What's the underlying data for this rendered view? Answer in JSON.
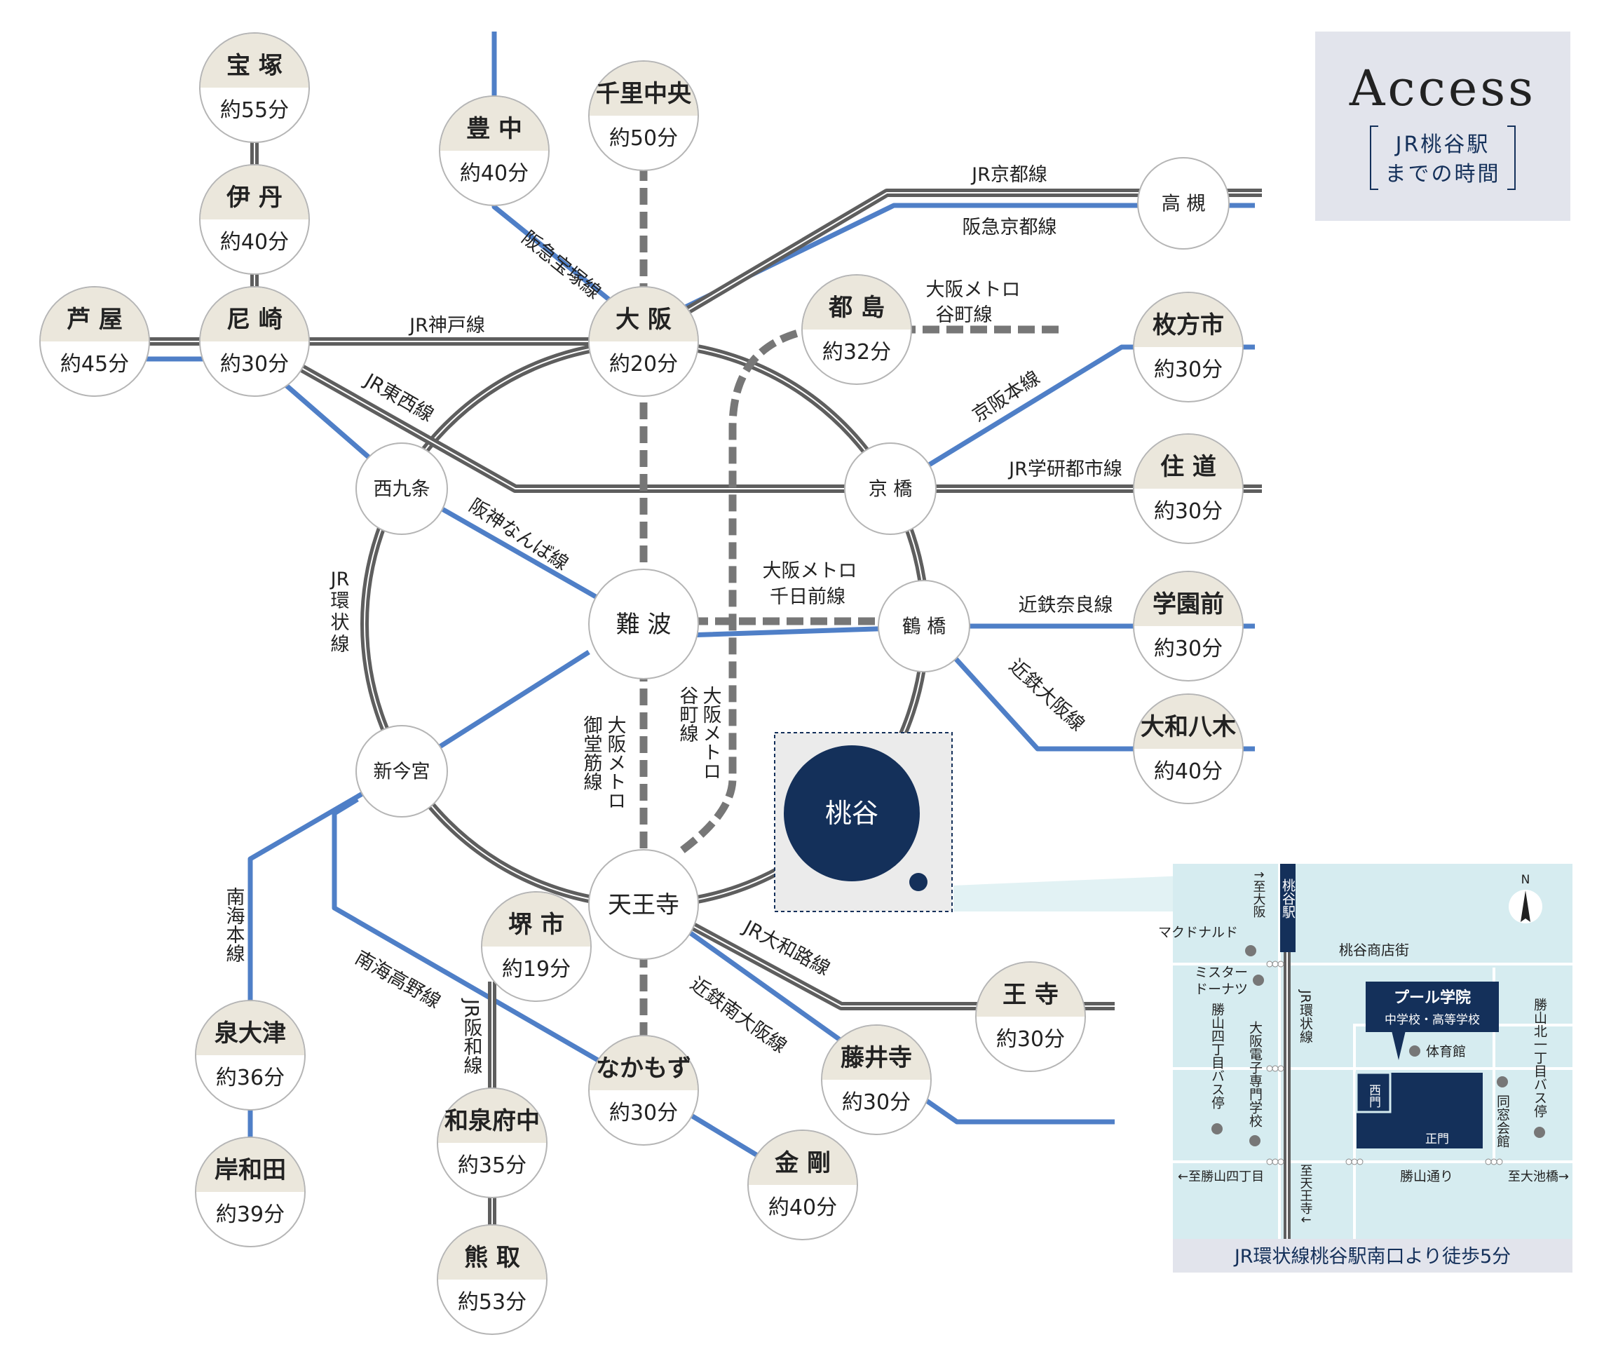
{
  "title": {
    "main": "Access",
    "sub1": "JR桃谷駅",
    "sub2": "までの時間"
  },
  "colors": {
    "blue": "#4f7fc7",
    "gray": "#5e5e5e",
    "beige": "#ebe7dc",
    "navy": "#14305a",
    "panel": "#e2e4ec",
    "maplight": "#d6ecf0"
  },
  "stations": {
    "takarazuka": {
      "name": "宝 塚",
      "time": "約55分"
    },
    "itami": {
      "name": "伊 丹",
      "time": "約40分"
    },
    "ashiya": {
      "name": "芦 屋",
      "time": "約45分"
    },
    "amagasaki": {
      "name": "尼 崎",
      "time": "約30分"
    },
    "toyonaka": {
      "name": "豊 中",
      "time": "約40分"
    },
    "senrichuo": {
      "name": "千里中央",
      "time": "約50分"
    },
    "osaka": {
      "name": "大 阪",
      "time": "約20分"
    },
    "miyakojima": {
      "name": "都 島",
      "time": "約32分"
    },
    "takatsuki": {
      "name": "高 槻"
    },
    "hirakatashi": {
      "name": "枚方市",
      "time": "約30分"
    },
    "sumimichi": {
      "name": "住 道",
      "time": "約30分"
    },
    "gakuenmae": {
      "name": "学園前",
      "time": "約30分"
    },
    "yamatoyagi": {
      "name": "大和八木",
      "time": "約40分"
    },
    "nishikujo": {
      "name": "西九条"
    },
    "kyobashi": {
      "name": "京 橋"
    },
    "namba": {
      "name": "難 波"
    },
    "tsuruhashi": {
      "name": "鶴 橋"
    },
    "shinimamiya": {
      "name": "新今宮"
    },
    "tennoji": {
      "name": "天王寺"
    },
    "momodani": {
      "name": "桃谷"
    },
    "sakaishi": {
      "name": "堺 市",
      "time": "約19分"
    },
    "oji": {
      "name": "王 寺",
      "time": "約30分"
    },
    "fujiidera": {
      "name": "藤井寺",
      "time": "約30分"
    },
    "nakamozu": {
      "name": "なかもず",
      "time": "約30分"
    },
    "kongo": {
      "name": "金 剛",
      "time": "約40分"
    },
    "izumiotsu": {
      "name": "泉大津",
      "time": "約36分"
    },
    "kishiwada": {
      "name": "岸和田",
      "time": "約39分"
    },
    "izumifuchu": {
      "name": "和泉府中",
      "time": "約35分"
    },
    "kumatori": {
      "name": "熊 取",
      "time": "約53分"
    }
  },
  "lines": {
    "jr_kyoto": "JR京都線",
    "hankyu_kyoto": "阪急京都線",
    "jr_kobe": "JR神戸線",
    "hankyu_takarazuka": "阪急宝塚線",
    "metro_tanimachi_top_1": "大阪メトロ",
    "metro_tanimachi_top_2": "谷町線",
    "keihan": "京阪本線",
    "jr_tozai": "JR東西線",
    "jr_gakkentoshi": "JR学研都市線",
    "hanshin_namba": "阪神なんば線",
    "jr_loop_1": "JR",
    "jr_loop_2": "環",
    "jr_loop_3": "状",
    "jr_loop_4": "線",
    "metro_sennichimae_1": "大阪メトロ",
    "metro_sennichimae_2": "千日前線",
    "kintetsu_nara": "近鉄奈良線",
    "kintetsu_osaka": "近鉄大阪線",
    "metro_midosuji_1": "大阪メトロ",
    "metro_midosuji_2": "御堂筋線",
    "metro_tanimachi_1": "大阪メトロ",
    "metro_tanimachi_2": "谷町線",
    "jr_yamatoji": "JR大和路線",
    "kintetsu_minamiosaka": "近鉄南大阪線",
    "nankai_main": "南海本線",
    "nankai_koya": "南海高野線",
    "jr_hanwa": "JR阪和線"
  },
  "localmap": {
    "north": "N",
    "station_label": "桃谷駅",
    "to_osaka": "↑至大阪",
    "to_tennoji": "至天王寺↓",
    "jr_loop": "JR環状線",
    "mcdonalds": "マクドナルド",
    "misterdonut_1": "ミスター",
    "misterdonut_2": "ドーナツ",
    "shotengai": "桃谷商店街",
    "school_1": "プール学院",
    "school_2": "中学校・高等学校",
    "gym": "体育館",
    "west_gate": "西門",
    "main_gate": "正門",
    "alumni_hall": "同窓会館",
    "bus_katsuyama4": "勝山四丁目バス停",
    "bus_katsuyamakita1": "勝山北一丁目バス停",
    "denshi_school": "大阪電子専門学校",
    "katsuyama_dori": "勝山通り",
    "to_katsuyama4": "←至勝山四丁目",
    "to_oikebashi": "至大池橋→",
    "footer": "JR環状線桃谷駅南口より徒歩5分"
  }
}
